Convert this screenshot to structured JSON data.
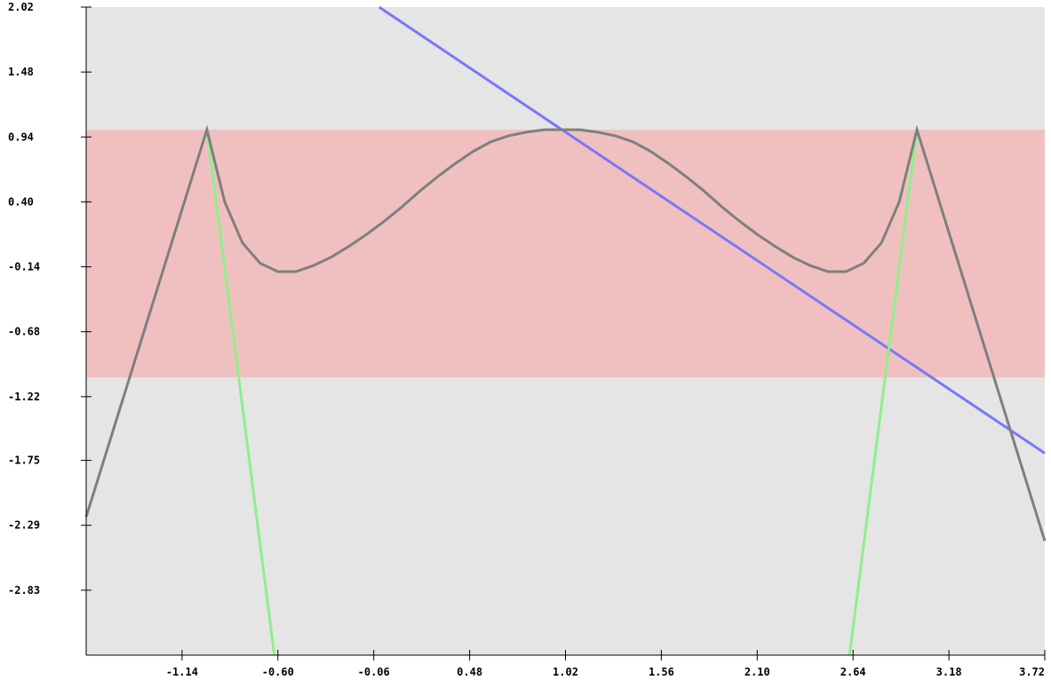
{
  "chart_data": {
    "type": "line",
    "title": "",
    "xlabel": "",
    "ylabel": "",
    "xlim": [
      -1.68,
      3.72
    ],
    "ylim": [
      -3.37,
      2.02
    ],
    "x_ticks": [
      "-1.14",
      "-0.60",
      "-0.06",
      "0.48",
      "1.02",
      "1.56",
      "2.10",
      "2.64",
      "3.18",
      "3.72"
    ],
    "y_ticks": [
      "2.02",
      "1.48",
      "0.94",
      "0.40",
      "-0.14",
      "-0.68",
      "-1.22",
      "-1.75",
      "-2.29",
      "-2.83"
    ],
    "grid": false,
    "background_color": "#e5e5e5",
    "band": {
      "y_from": -1.06,
      "y_to": 1.0,
      "color": "#f0c0c0"
    },
    "series": [
      {
        "color": "#7878f8",
        "points": [
          [
            -0.03,
            2.02
          ],
          [
            1.0,
            1.0
          ],
          [
            3.72,
            -1.69
          ]
        ]
      },
      {
        "color": "#8ef08a",
        "points": [
          [
            -1.0,
            1.0
          ],
          [
            -0.62,
            -3.37
          ]
        ]
      },
      {
        "color": "#8ef08a",
        "points": [
          [
            2.62,
            -3.37
          ],
          [
            3.0,
            1.0
          ]
        ]
      },
      {
        "color": "#7f7f7f",
        "points": [
          [
            -1.68,
            -2.22
          ],
          [
            -1.0,
            1.0
          ],
          [
            -0.9,
            0.4
          ],
          [
            -0.8,
            0.06
          ],
          [
            -0.7,
            -0.11
          ],
          [
            -0.6,
            -0.18
          ],
          [
            -0.5,
            -0.18
          ],
          [
            -0.4,
            -0.13
          ],
          [
            -0.3,
            -0.06
          ],
          [
            -0.2,
            0.03
          ],
          [
            -0.1,
            0.13
          ],
          [
            0.0,
            0.24
          ],
          [
            0.1,
            0.36
          ],
          [
            0.2,
            0.49
          ],
          [
            0.3,
            0.61
          ],
          [
            0.4,
            0.72
          ],
          [
            0.5,
            0.82
          ],
          [
            0.6,
            0.9
          ],
          [
            0.7,
            0.95
          ],
          [
            0.8,
            0.98
          ],
          [
            0.9,
            1.0
          ],
          [
            1.0,
            1.0
          ],
          [
            1.1,
            1.0
          ],
          [
            1.2,
            0.98
          ],
          [
            1.3,
            0.95
          ],
          [
            1.4,
            0.9
          ],
          [
            1.5,
            0.82
          ],
          [
            1.6,
            0.72
          ],
          [
            1.7,
            0.61
          ],
          [
            1.8,
            0.49
          ],
          [
            1.9,
            0.36
          ],
          [
            2.0,
            0.24
          ],
          [
            2.1,
            0.13
          ],
          [
            2.2,
            0.03
          ],
          [
            2.3,
            -0.06
          ],
          [
            2.4,
            -0.13
          ],
          [
            2.5,
            -0.18
          ],
          [
            2.6,
            -0.18
          ],
          [
            2.7,
            -0.11
          ],
          [
            2.8,
            0.06
          ],
          [
            2.9,
            0.4
          ],
          [
            3.0,
            1.0
          ],
          [
            3.72,
            -2.42
          ]
        ]
      }
    ]
  }
}
